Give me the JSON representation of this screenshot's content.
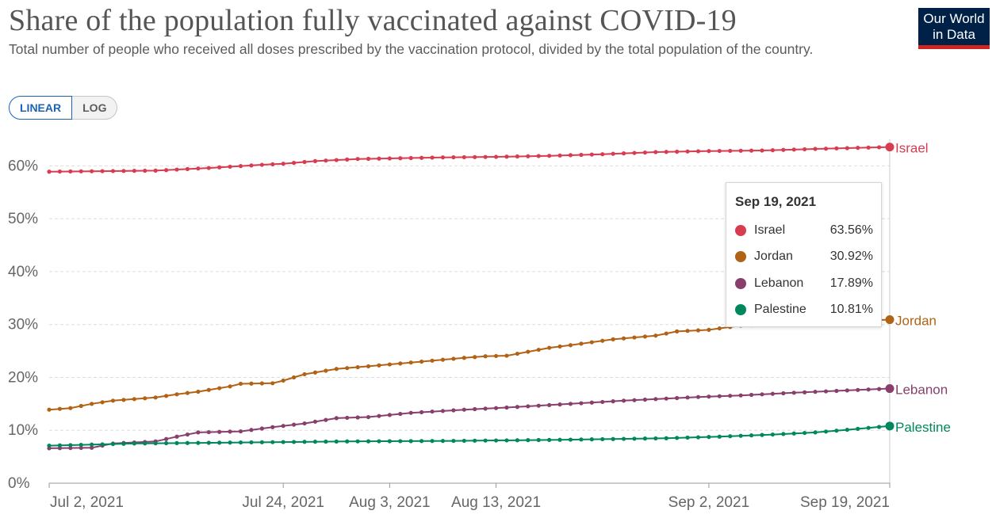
{
  "header": {
    "title": "Share of the population fully vaccinated against COVID-19",
    "subtitle": "Total number of people who received all doses prescribed by the vaccination protocol, divided by the total population of the country.",
    "logo_line1": "Our World",
    "logo_line2": "in Data"
  },
  "controls": {
    "linear_label": "LINEAR",
    "log_label": "LOG",
    "active": "LINEAR"
  },
  "tooltip": {
    "date": "Sep 19, 2021",
    "rows": [
      {
        "name": "Israel",
        "value": "63.56%",
        "color": "#d73c50"
      },
      {
        "name": "Jordan",
        "value": "30.92%",
        "color": "#b16214"
      },
      {
        "name": "Lebanon",
        "value": "17.89%",
        "color": "#883f6b"
      },
      {
        "name": "Palestine",
        "value": "10.81%",
        "color": "#00875e"
      }
    ]
  },
  "chart_data": {
    "type": "line",
    "title": "Share of the population fully vaccinated against COVID-19",
    "x_range": [
      "2021-07-02",
      "2021-09-19"
    ],
    "y_range": [
      0,
      65
    ],
    "y_ticks": [
      0,
      10,
      20,
      30,
      40,
      50,
      60
    ],
    "y_tick_labels": [
      "0%",
      "10%",
      "20%",
      "30%",
      "40%",
      "50%",
      "60%"
    ],
    "x_ticks": [
      "2021-07-02",
      "2021-07-24",
      "2021-08-03",
      "2021-08-13",
      "2021-09-02",
      "2021-09-19"
    ],
    "x_tick_labels": [
      "Jul 2, 2021",
      "Jul 24, 2021",
      "Aug 3, 2021",
      "Aug 13, 2021",
      "Sep 2, 2021",
      "Sep 19, 2021"
    ],
    "grid": "horizontal dashed",
    "series": [
      {
        "name": "Israel",
        "color": "#d73c50",
        "points": [
          [
            "2021-07-02",
            58.9
          ],
          [
            "2021-07-07",
            59.0
          ],
          [
            "2021-07-12",
            59.1
          ],
          [
            "2021-07-17",
            59.6
          ],
          [
            "2021-07-22",
            60.2
          ],
          [
            "2021-07-24",
            60.4
          ],
          [
            "2021-07-27",
            60.9
          ],
          [
            "2021-07-31",
            61.3
          ],
          [
            "2021-08-03",
            61.4
          ],
          [
            "2021-08-08",
            61.6
          ],
          [
            "2021-08-13",
            61.7
          ],
          [
            "2021-08-18",
            61.9
          ],
          [
            "2021-08-23",
            62.2
          ],
          [
            "2021-08-28",
            62.6
          ],
          [
            "2021-09-02",
            62.8
          ],
          [
            "2021-09-07",
            62.9
          ],
          [
            "2021-09-12",
            63.2
          ],
          [
            "2021-09-19",
            63.56
          ]
        ]
      },
      {
        "name": "Jordan",
        "color": "#b16214",
        "points": [
          [
            "2021-07-02",
            13.9
          ],
          [
            "2021-07-04",
            14.2
          ],
          [
            "2021-07-06",
            15.0
          ],
          [
            "2021-07-08",
            15.6
          ],
          [
            "2021-07-12",
            16.2
          ],
          [
            "2021-07-14",
            16.8
          ],
          [
            "2021-07-16",
            17.3
          ],
          [
            "2021-07-19",
            18.3
          ],
          [
            "2021-07-20",
            18.8
          ],
          [
            "2021-07-23",
            18.9
          ],
          [
            "2021-07-24",
            19.4
          ],
          [
            "2021-07-26",
            20.6
          ],
          [
            "2021-07-29",
            21.6
          ],
          [
            "2021-08-01",
            22.1
          ],
          [
            "2021-08-10",
            23.7
          ],
          [
            "2021-08-12",
            24.0
          ],
          [
            "2021-08-14",
            24.1
          ],
          [
            "2021-08-18",
            25.6
          ],
          [
            "2021-08-20",
            26.1
          ],
          [
            "2021-08-24",
            27.2
          ],
          [
            "2021-08-28",
            27.9
          ],
          [
            "2021-08-30",
            28.7
          ],
          [
            "2021-09-02",
            29.0
          ],
          [
            "2021-09-05",
            29.8
          ],
          [
            "2021-09-19",
            30.92
          ]
        ]
      },
      {
        "name": "Lebanon",
        "color": "#883f6b",
        "points": [
          [
            "2021-07-02",
            6.6
          ],
          [
            "2021-07-06",
            6.7
          ],
          [
            "2021-07-08",
            7.5
          ],
          [
            "2021-07-12",
            7.9
          ],
          [
            "2021-07-14",
            8.8
          ],
          [
            "2021-07-16",
            9.6
          ],
          [
            "2021-07-20",
            9.8
          ],
          [
            "2021-07-23",
            10.6
          ],
          [
            "2021-07-26",
            11.3
          ],
          [
            "2021-07-29",
            12.3
          ],
          [
            "2021-08-01",
            12.5
          ],
          [
            "2021-08-05",
            13.3
          ],
          [
            "2021-08-10",
            13.9
          ],
          [
            "2021-08-14",
            14.3
          ],
          [
            "2021-08-20",
            15.0
          ],
          [
            "2021-08-25",
            15.6
          ],
          [
            "2021-09-01",
            16.3
          ],
          [
            "2021-09-05",
            16.6
          ],
          [
            "2021-09-10",
            17.1
          ],
          [
            "2021-09-19",
            17.89
          ]
        ]
      },
      {
        "name": "Palestine",
        "color": "#00875e",
        "points": [
          [
            "2021-07-02",
            7.1
          ],
          [
            "2021-07-10",
            7.5
          ],
          [
            "2021-07-20",
            7.7
          ],
          [
            "2021-07-30",
            7.9
          ],
          [
            "2021-08-09",
            8.0
          ],
          [
            "2021-08-19",
            8.2
          ],
          [
            "2021-08-29",
            8.5
          ],
          [
            "2021-09-03",
            8.8
          ],
          [
            "2021-09-08",
            9.2
          ],
          [
            "2021-09-12",
            9.6
          ],
          [
            "2021-09-15",
            10.1
          ],
          [
            "2021-09-19",
            10.81
          ]
        ]
      }
    ]
  }
}
